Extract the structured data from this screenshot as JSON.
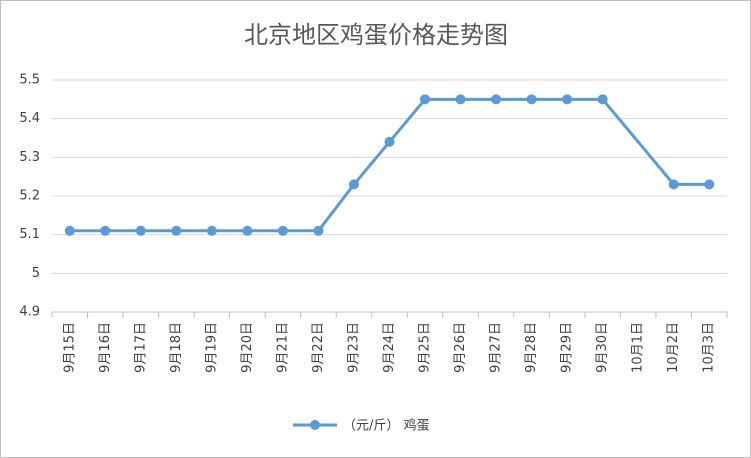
{
  "chart_data": {
    "type": "line",
    "title": "北京地区鸡蛋价格走势图",
    "categories": [
      "9月15日",
      "9月16日",
      "9月17日",
      "9月18日",
      "9月19日",
      "9月20日",
      "9月21日",
      "9月22日",
      "9月23日",
      "9月24日",
      "9月25日",
      "9月26日",
      "9月27日",
      "9月28日",
      "9月29日",
      "9月30日",
      "10月1日",
      "10月2日",
      "10月3日"
    ],
    "series": [
      {
        "name": "（元/斤） 鸡蛋",
        "color": "#5b9bd5",
        "values": [
          5.11,
          5.11,
          5.11,
          5.11,
          5.11,
          5.11,
          5.11,
          5.11,
          5.23,
          5.34,
          5.45,
          5.45,
          5.45,
          5.45,
          5.45,
          5.45,
          null,
          5.23,
          5.23
        ]
      }
    ],
    "ylim": [
      4.9,
      5.5
    ],
    "yticks": [
      4.9,
      5,
      5.1,
      5.2,
      5.3,
      5.4,
      5.5
    ],
    "grid": true,
    "span_gaps": true,
    "legend": "bottom"
  }
}
